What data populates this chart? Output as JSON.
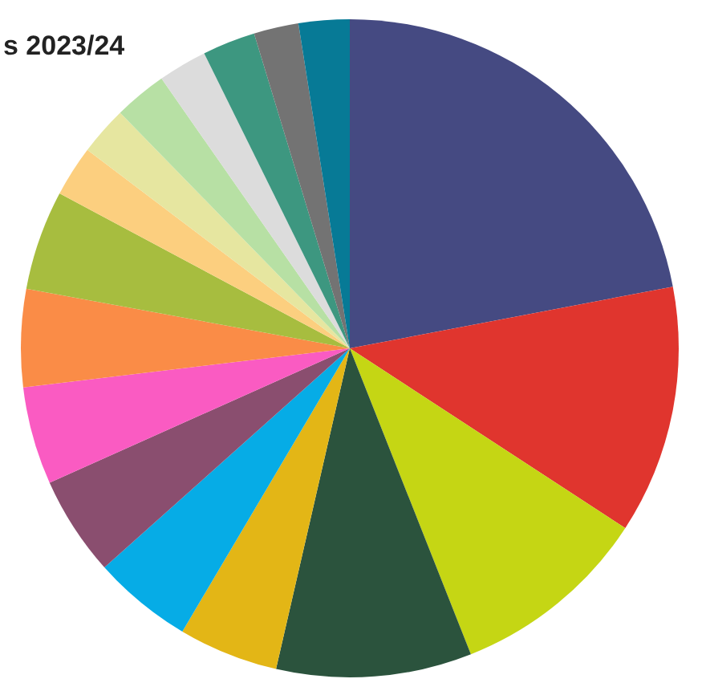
{
  "chart_data": {
    "type": "pie",
    "title": "s 2023/24",
    "categories": [
      null,
      null,
      null,
      null,
      null,
      null,
      null,
      null,
      null,
      null,
      null,
      null,
      null,
      null,
      null,
      null,
      null
    ],
    "values": [
      22.0,
      12.2,
      9.8,
      9.6,
      4.9,
      4.9,
      4.9,
      4.8,
      4.8,
      4.9,
      2.5,
      2.4,
      2.6,
      2.4,
      2.6,
      2.2,
      2.5
    ],
    "colors": [
      "#454a82",
      "#e0352e",
      "#c5d614",
      "#2b533d",
      "#e3b616",
      "#06ace6",
      "#8a4e6f",
      "#fa5bc2",
      "#fa8c47",
      "#a7bd3f",
      "#fccf7f",
      "#e6e6a0",
      "#b7e0a4",
      "#dcdcdc",
      "#3d9780",
      "#737373",
      "#077a96"
    ]
  }
}
